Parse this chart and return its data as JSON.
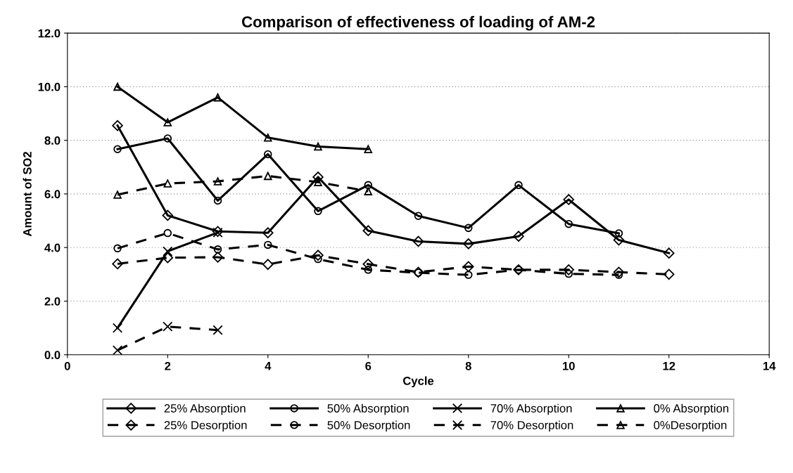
{
  "chart_data": {
    "type": "line",
    "title": "Comparison of effectiveness of loading of AM-2",
    "xlabel": "Cycle",
    "ylabel": "Amount of SO2",
    "xlim": [
      0,
      14
    ],
    "xticks": [
      0,
      2,
      4,
      6,
      8,
      10,
      12,
      14
    ],
    "ylim": [
      0,
      12
    ],
    "yticks": [
      {
        "value": 0,
        "label": "0.0"
      },
      {
        "value": 2,
        "label": "2.0"
      },
      {
        "value": 4,
        "label": "4.0"
      },
      {
        "value": 6,
        "label": "6.0"
      },
      {
        "value": 8,
        "label": "8.0"
      },
      {
        "value": 10,
        "label": "10.0"
      },
      {
        "value": 12,
        "label": "12.0"
      }
    ],
    "grid": "y",
    "legend": "bottom",
    "series": [
      {
        "name": "25% Absorption",
        "color": "#000000",
        "marker": "diamond",
        "line_style": "solid",
        "x": [
          1,
          2,
          3,
          4,
          5,
          6,
          7,
          8,
          9,
          10,
          11,
          12
        ],
        "values": [
          8.55,
          5.2,
          4.6,
          4.55,
          6.63,
          4.63,
          4.23,
          4.14,
          4.42,
          5.79,
          4.28,
          3.79
        ]
      },
      {
        "name": "25% Desorption",
        "color": "#000000",
        "marker": "diamond",
        "line_style": "dashed",
        "x": [
          1,
          2,
          3,
          4,
          5,
          6,
          7,
          8,
          9,
          10,
          11,
          12
        ],
        "values": [
          3.39,
          3.62,
          3.64,
          3.37,
          3.71,
          3.38,
          3.08,
          3.29,
          3.17,
          3.17,
          3.08,
          3.0
        ]
      },
      {
        "name": "50% Absorption",
        "color": "#000000",
        "marker": "circle",
        "line_style": "solid",
        "x": [
          1,
          2,
          3,
          4,
          5,
          6,
          7,
          8,
          9,
          10,
          11
        ],
        "values": [
          7.67,
          8.07,
          5.75,
          7.48,
          5.36,
          6.33,
          5.18,
          4.73,
          6.33,
          4.88,
          4.53
        ]
      },
      {
        "name": "50% Desorption",
        "color": "#000000",
        "marker": "circle",
        "line_style": "dashed",
        "x": [
          1,
          2,
          3,
          4,
          5,
          6,
          7,
          8,
          9,
          10,
          11
        ],
        "values": [
          3.97,
          4.54,
          3.93,
          4.1,
          3.57,
          3.17,
          3.06,
          2.98,
          3.17,
          3.02,
          2.98
        ]
      },
      {
        "name": "70% Absorption",
        "color": "#000000",
        "marker": "cross",
        "line_style": "solid",
        "x": [
          1,
          2,
          3
        ],
        "values": [
          1.0,
          3.86,
          4.56
        ]
      },
      {
        "name": "70% Desorption",
        "color": "#000000",
        "marker": "cross",
        "line_style": "dashed",
        "x": [
          1,
          2,
          3
        ],
        "values": [
          0.17,
          1.05,
          0.92
        ]
      },
      {
        "name": "0% Absorption",
        "color": "#000000",
        "marker": "triangle",
        "line_style": "solid",
        "x": [
          1,
          2,
          3,
          4,
          5,
          6
        ],
        "values": [
          10.0,
          8.67,
          9.6,
          8.1,
          7.77,
          7.67
        ]
      },
      {
        "name": "0%Desorption",
        "color": "#000000",
        "marker": "triangle",
        "line_style": "dashed",
        "x": [
          1,
          2,
          3,
          4,
          5,
          6
        ],
        "values": [
          5.97,
          6.39,
          6.47,
          6.67,
          6.44,
          6.1
        ]
      }
    ]
  }
}
